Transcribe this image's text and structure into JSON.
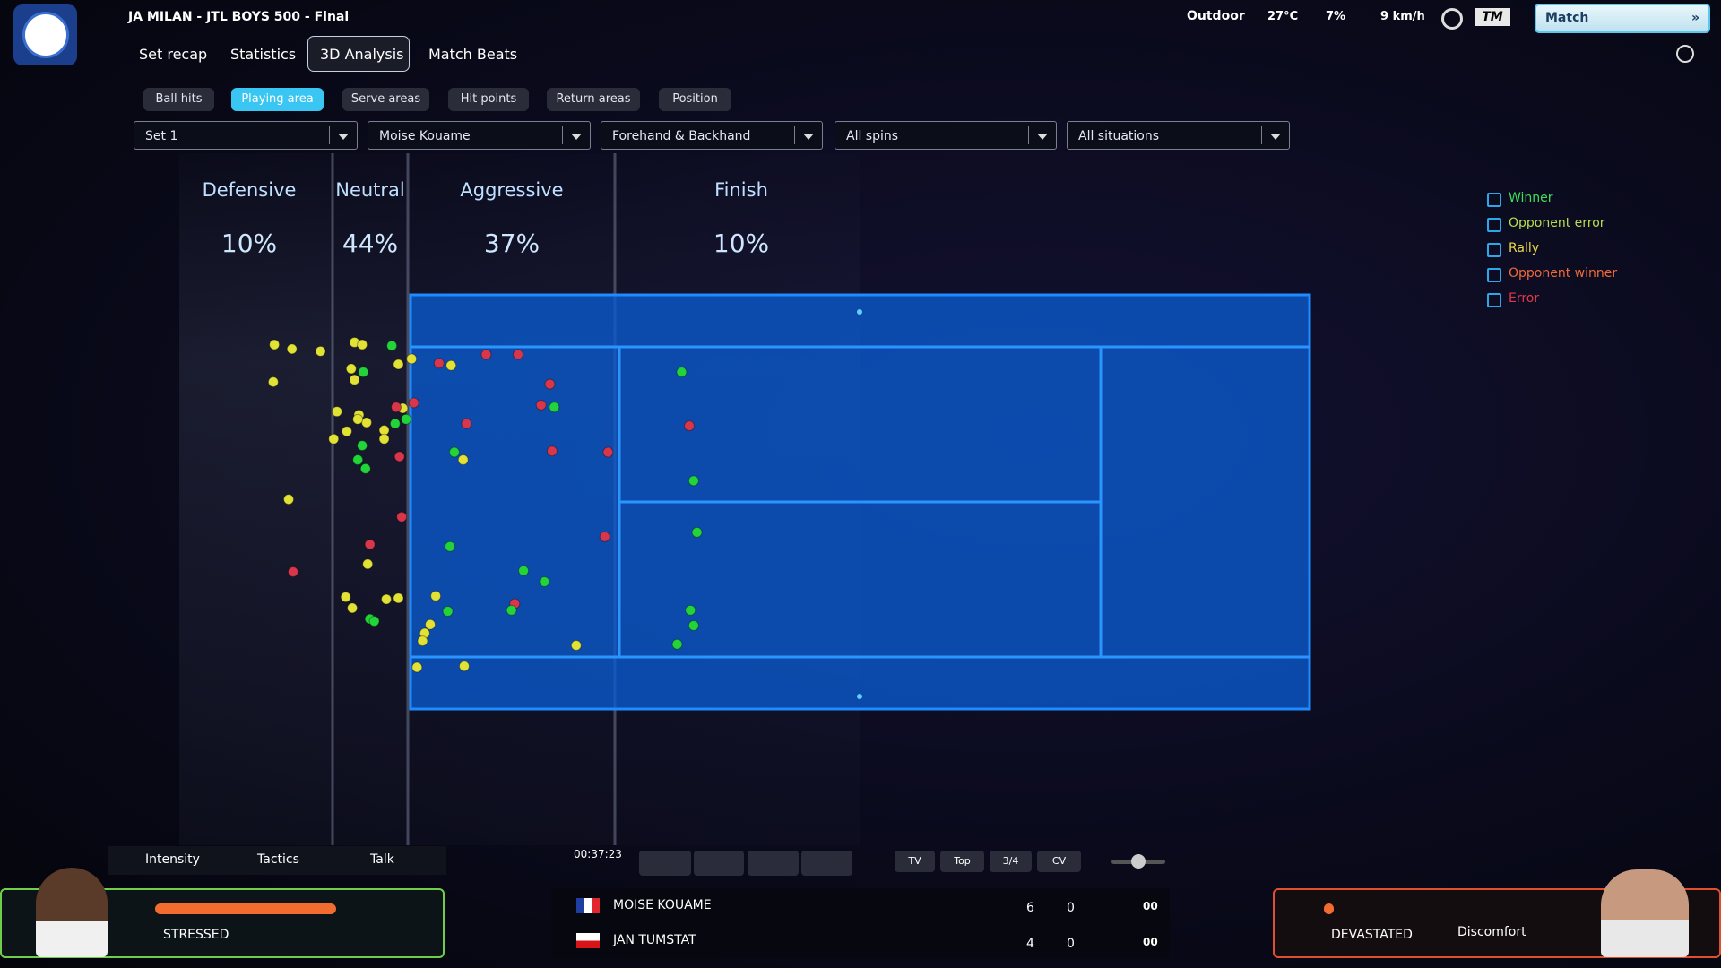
{
  "header": {
    "title": "JA MILAN - JTL BOYS 500 - Final",
    "tabs": [
      "Set recap",
      "Statistics",
      "3D Analysis",
      "Match Beats"
    ],
    "conditions": {
      "venue": "Outdoor",
      "temperature": "27°C",
      "humidity": "7%",
      "wind": "9 km/h"
    },
    "brand": "TM",
    "match_button": "Match"
  },
  "analysis": {
    "sub_tabs": [
      "Ball hits",
      "Playing area",
      "Serve areas",
      "Hit points",
      "Return areas",
      "Position"
    ],
    "filters": [
      "Set 1",
      "Moise Kouame",
      "Forehand & Backhand",
      "All spins",
      "All situations"
    ],
    "zones": [
      {
        "label": "Defensive",
        "value": "10%"
      },
      {
        "label": "Neutral",
        "value": "44%"
      },
      {
        "label": "Aggressive",
        "value": "37%"
      },
      {
        "label": "Finish",
        "value": "10%"
      }
    ],
    "legend": [
      "Winner",
      "Opponent error",
      "Rally",
      "Opponent winner",
      "Error"
    ]
  },
  "bottom": {
    "actions": [
      "Intensity",
      "Tactics",
      "Talk"
    ],
    "timer": "00:37:23",
    "camera": [
      "TV",
      "Top",
      "3/4",
      "CV"
    ],
    "players": [
      {
        "name": "MOISE KOUAME",
        "sets": 6,
        "games": 0,
        "points": "00"
      },
      {
        "name": "JAN TUMSTAT",
        "sets": 4,
        "games": 0,
        "points": "00"
      }
    ],
    "left_panel": {
      "mood": "STRESSED"
    },
    "right_panel": {
      "mood": "DEVASTATED",
      "condition": "Discomfort"
    }
  }
}
